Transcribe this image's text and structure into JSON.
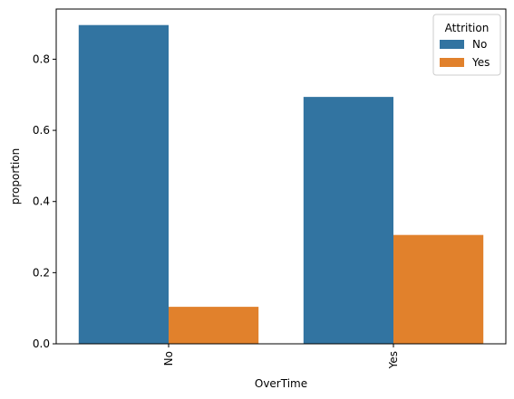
{
  "chart_data": {
    "type": "bar",
    "title": "",
    "xlabel": "OverTime",
    "ylabel": "proportion",
    "categories": [
      "No",
      "Yes"
    ],
    "series": [
      {
        "name": "No",
        "values": [
          0.896,
          0.694
        ],
        "color": "#3274a1"
      },
      {
        "name": "Yes",
        "values": [
          0.104,
          0.306
        ],
        "color": "#e1812c"
      }
    ],
    "yticks": [
      0.0,
      0.2,
      0.4,
      0.6,
      0.8
    ],
    "ytick_labels": [
      "0.0",
      "0.2",
      "0.4",
      "0.6",
      "0.8"
    ],
    "ylim": [
      0,
      0.941
    ],
    "grid": false,
    "legend": {
      "title": "Attrition",
      "placement": "top-right"
    },
    "x_tick_rotation": "vertical"
  }
}
